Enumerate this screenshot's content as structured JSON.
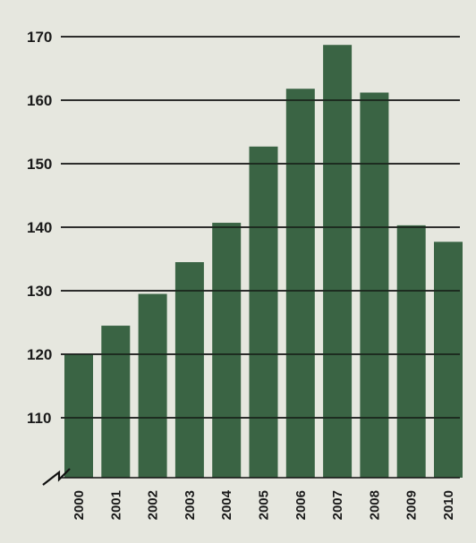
{
  "chart_data": {
    "type": "bar",
    "categories": [
      "2000",
      "2001",
      "2002",
      "2003",
      "2004",
      "2005",
      "2006",
      "2007",
      "2008",
      "2009",
      "2010"
    ],
    "values": [
      120,
      124.5,
      129.5,
      134.5,
      140.7,
      152.7,
      161.8,
      168.7,
      161.2,
      140.3,
      137.7
    ],
    "title": "",
    "xlabel": "",
    "ylabel": "",
    "ylim": [
      100,
      170
    ],
    "yticks": [
      "170",
      "160",
      "150",
      "140",
      "130",
      "120",
      "110"
    ],
    "axis_break": true,
    "grid": true,
    "legend": "none",
    "colors": {
      "bar": "#3a6444",
      "grid": "#111111",
      "background": "#e6e7df"
    }
  }
}
